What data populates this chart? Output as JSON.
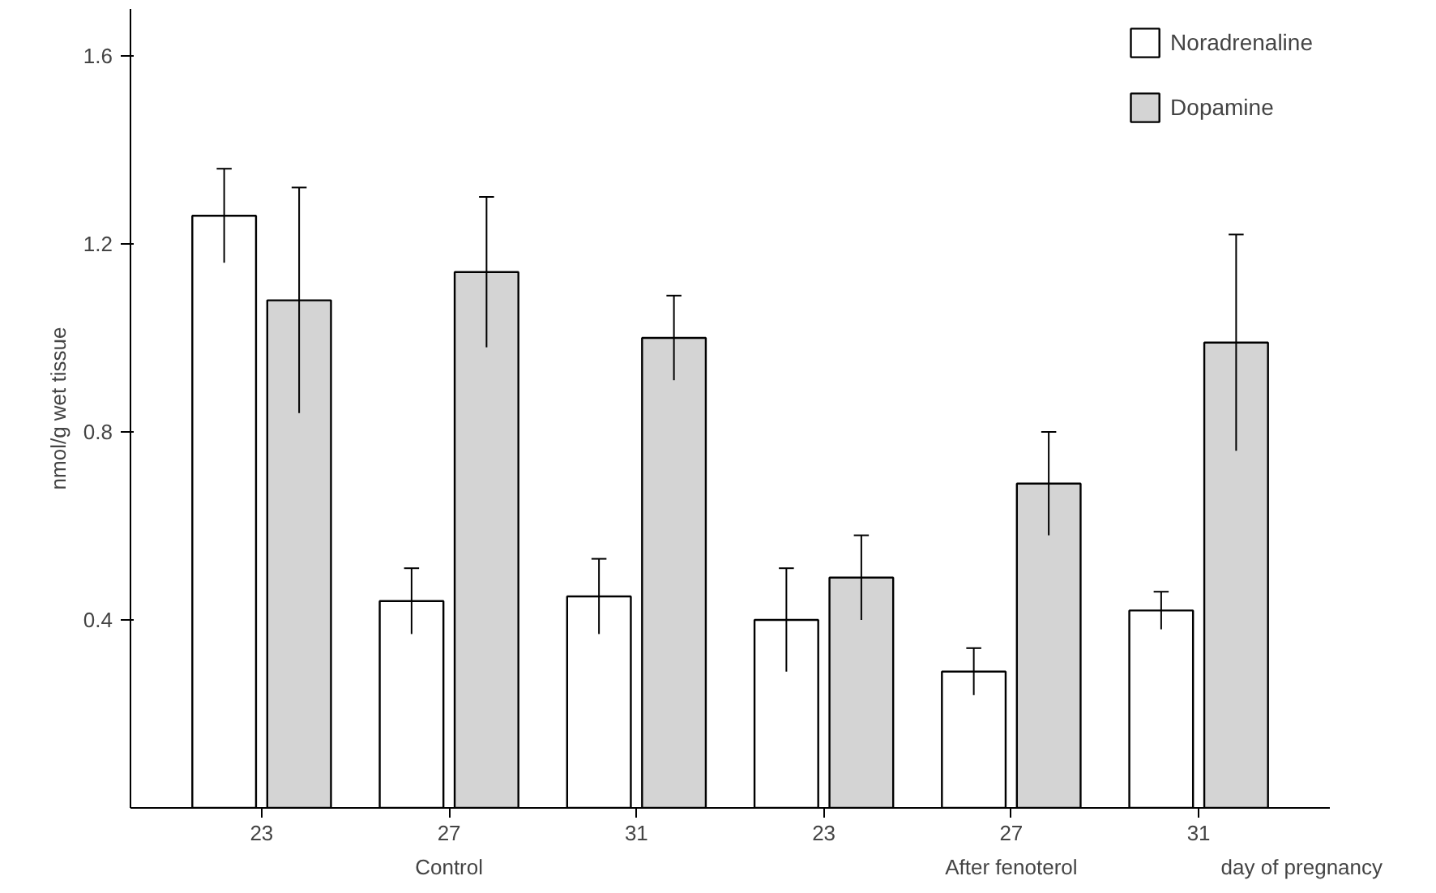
{
  "chart_data": {
    "type": "bar",
    "ylabel": "nmol/g wet tissue",
    "categories": [
      "23",
      "27",
      "31",
      "23",
      "27",
      "31"
    ],
    "series": [
      {
        "name": "Noradrenaline",
        "color": "#ffffff",
        "values": [
          1.26,
          0.44,
          0.45,
          0.4,
          0.29,
          0.42
        ],
        "errors": [
          0.1,
          0.07,
          0.08,
          0.11,
          0.05,
          0.04
        ]
      },
      {
        "name": "Dopamine",
        "color": "#d4d4d4",
        "values": [
          1.08,
          1.14,
          1.0,
          0.49,
          0.69,
          0.99
        ],
        "errors": [
          0.24,
          0.16,
          0.09,
          0.09,
          0.11,
          0.23
        ]
      }
    ],
    "ylim": [
      0,
      1.7
    ],
    "yticks": [
      0.4,
      0.8,
      1.2,
      1.6
    ],
    "grid": false,
    "legend": "top right",
    "annotations": [
      "Control",
      "After fenoterol",
      "day of pregnancy"
    ]
  }
}
